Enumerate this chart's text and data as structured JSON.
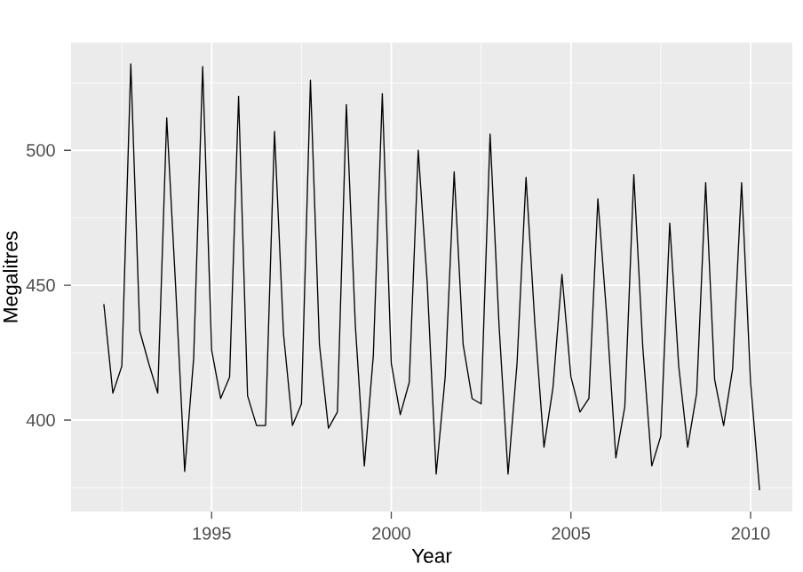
{
  "chart_data": {
    "type": "line",
    "xlabel": "Year",
    "ylabel": "Megalitres",
    "x": [
      1992,
      1992.25,
      1992.5,
      1992.75,
      1993,
      1993.25,
      1993.5,
      1993.75,
      1994,
      1994.25,
      1994.5,
      1994.75,
      1995,
      1995.25,
      1995.5,
      1995.75,
      1996,
      1996.25,
      1996.5,
      1996.75,
      1997,
      1997.25,
      1997.5,
      1997.75,
      1998,
      1998.25,
      1998.5,
      1998.75,
      1999,
      1999.25,
      1999.5,
      1999.75,
      2000,
      2000.25,
      2000.5,
      2000.75,
      2001,
      2001.25,
      2001.5,
      2001.75,
      2002,
      2002.25,
      2002.5,
      2002.75,
      2003,
      2003.25,
      2003.5,
      2003.75,
      2004,
      2004.25,
      2004.5,
      2004.75,
      2005,
      2005.25,
      2005.5,
      2005.75,
      2006,
      2006.25,
      2006.5,
      2006.75,
      2007,
      2007.25,
      2007.5,
      2007.75,
      2008,
      2008.25,
      2008.5,
      2008.75,
      2009,
      2009.25,
      2009.5,
      2009.75,
      2010,
      2010.25
    ],
    "series": [
      {
        "color": "#000000",
        "values": [
          443,
          410,
          420,
          532,
          433,
          421,
          410,
          512,
          449,
          381,
          423,
          531,
          426,
          408,
          416,
          520,
          409,
          398,
          398,
          507,
          432,
          398,
          406,
          526,
          428,
          397,
          403,
          517,
          435,
          383,
          424,
          521,
          421,
          402,
          414,
          500,
          451,
          380,
          416,
          492,
          428,
          408,
          406,
          506,
          435,
          380,
          421,
          490,
          435,
          390,
          412,
          454,
          416,
          403,
          408,
          482,
          438,
          386,
          405,
          491,
          427,
          383,
          394,
          473,
          420,
          390,
          410,
          488,
          415,
          398,
          419,
          488,
          414,
          374
        ]
      }
    ],
    "xlim": [
      1991.0875,
      2011.1625
    ],
    "ylim": [
      366.1,
      539.9
    ],
    "xticks": [
      {
        "value": 1992.5,
        "label": null
      },
      1995,
      {
        "value": 1997.5,
        "label": null
      },
      2000,
      {
        "value": 2002.5,
        "label": null
      },
      2005,
      {
        "value": 2007.5,
        "label": null
      },
      2010
    ],
    "yticks": [
      {
        "value": 375,
        "label": null
      },
      400,
      {
        "value": 425,
        "label": null
      },
      450,
      {
        "value": 475,
        "label": null
      },
      500,
      {
        "value": 525,
        "label": null
      }
    ],
    "grid": true,
    "marker": "none",
    "line_style": "solid"
  }
}
